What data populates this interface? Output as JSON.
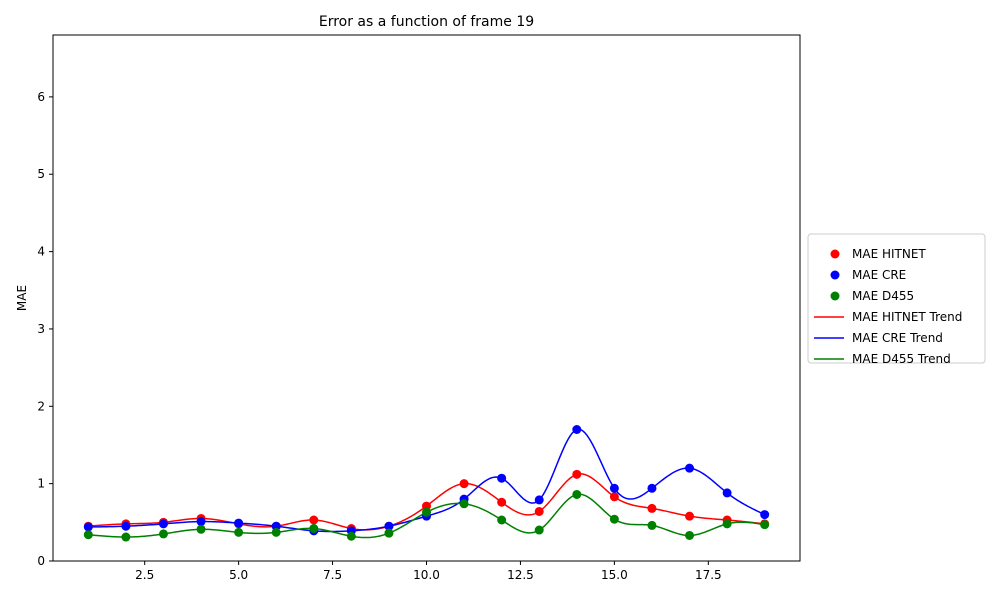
{
  "chart_data": {
    "type": "line",
    "title": "Error as a function of frame 19",
    "xlabel": "",
    "ylabel": "MAE",
    "xlim": [
      0.06,
      19.94
    ],
    "ylim": [
      0,
      6.8
    ],
    "xticks": [
      2.5,
      5.0,
      7.5,
      10.0,
      12.5,
      15.0,
      17.5
    ],
    "xtick_labels": [
      "2.5",
      "5.0",
      "7.5",
      "10.0",
      "12.5",
      "15.0",
      "17.5"
    ],
    "yticks": [
      0,
      1,
      2,
      3,
      4,
      5,
      6
    ],
    "ytick_labels": [
      "0",
      "1",
      "2",
      "3",
      "4",
      "5",
      "6"
    ],
    "grid": false,
    "legend_position": "outside-right",
    "x": [
      1,
      2,
      3,
      4,
      5,
      6,
      7,
      8,
      9,
      10,
      11,
      12,
      13,
      14,
      15,
      16,
      17,
      18,
      19
    ],
    "series": [
      {
        "name": "MAE HITNET",
        "trend_name": "MAE HITNET Trend",
        "color": "#ff0000",
        "values": [
          0.45,
          0.48,
          0.5,
          0.55,
          0.48,
          0.45,
          0.53,
          0.42,
          0.45,
          0.71,
          1.0,
          0.76,
          0.64,
          1.12,
          0.83,
          0.68,
          0.58,
          0.53,
          0.48
        ]
      },
      {
        "name": "MAE CRE",
        "trend_name": "MAE CRE Trend",
        "color": "#0000ff",
        "values": [
          0.44,
          0.45,
          0.48,
          0.51,
          0.49,
          0.45,
          0.39,
          0.39,
          0.45,
          0.58,
          0.8,
          1.07,
          0.79,
          1.7,
          0.94,
          0.94,
          1.2,
          0.88,
          0.6
        ]
      },
      {
        "name": "MAE D455",
        "trend_name": "MAE D455 Trend",
        "color": "#008000",
        "values": [
          0.34,
          0.31,
          0.35,
          0.41,
          0.37,
          0.37,
          0.42,
          0.32,
          0.36,
          0.63,
          0.74,
          0.53,
          0.4,
          0.86,
          0.54,
          0.46,
          0.33,
          0.48,
          0.47
        ]
      }
    ]
  }
}
